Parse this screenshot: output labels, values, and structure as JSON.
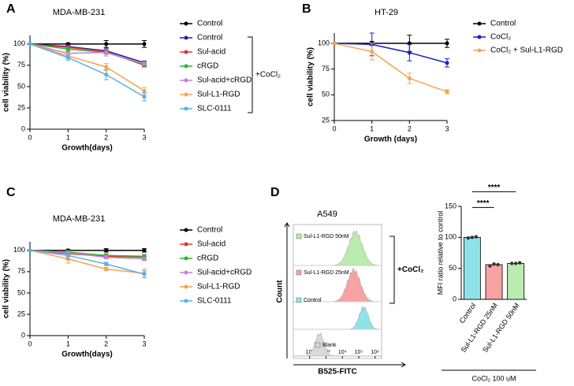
{
  "chart_data": [
    {
      "type": "line",
      "panel": "A",
      "title": "MDA-MB-231",
      "xlabel": "Growth(days)",
      "ylabel": "cell viability (%)",
      "x": [
        0,
        1,
        2,
        3
      ],
      "xlim": [
        0,
        3
      ],
      "xticks": [
        0,
        1,
        2,
        3
      ],
      "ylim": [
        0,
        110
      ],
      "yticks": [
        0,
        25,
        50,
        75,
        100
      ],
      "annotation": "+CoCl₂",
      "series": [
        {
          "name": "Control",
          "color": "#000000",
          "values": [
            100,
            100,
            100,
            100
          ],
          "errors": [
            0,
            1,
            4,
            4
          ]
        },
        {
          "name": "Control",
          "color": "#1f1fbf",
          "values": [
            100,
            97,
            92,
            78
          ],
          "errors": [
            0,
            2,
            3,
            2
          ]
        },
        {
          "name": "Sul-acid",
          "color": "#e8302a",
          "values": [
            100,
            96,
            91,
            75
          ],
          "errors": [
            0,
            2,
            2,
            2
          ]
        },
        {
          "name": "cRGD",
          "color": "#2db52d",
          "values": [
            100,
            94,
            90,
            76
          ],
          "errors": [
            0,
            2,
            2,
            2
          ]
        },
        {
          "name": "Sul-acid+cRGD",
          "color": "#c77fd6",
          "values": [
            100,
            89,
            90,
            77
          ],
          "errors": [
            0,
            2,
            4,
            2
          ]
        },
        {
          "name": "Sul-L1-RGD",
          "color": "#f5a54a",
          "values": [
            100,
            86,
            73,
            45
          ],
          "errors": [
            0,
            3,
            4,
            4
          ]
        },
        {
          "name": "SLC-0111",
          "color": "#5aaee8",
          "values": [
            100,
            84,
            64,
            38
          ],
          "errors": [
            0,
            3,
            6,
            5
          ]
        }
      ]
    },
    {
      "type": "line",
      "panel": "B",
      "title": "HT-29",
      "xlabel": "Growth (days)",
      "ylabel": "cell viability (%)",
      "x": [
        0,
        1,
        2,
        3
      ],
      "xlim": [
        0,
        3
      ],
      "xticks": [
        0,
        1,
        2,
        3
      ],
      "ylim": [
        25,
        110
      ],
      "yticks": [
        25,
        50,
        75,
        100
      ],
      "series": [
        {
          "name": "Control",
          "color": "#000000",
          "values": [
            100,
            100,
            100,
            100
          ],
          "errors": [
            0,
            2,
            8,
            4
          ]
        },
        {
          "name": "CoCl₂",
          "color": "#1f1fbf",
          "values": [
            100,
            99,
            91,
            81
          ],
          "errors": [
            0,
            11,
            8,
            4
          ]
        },
        {
          "name": "CoCl₂ + Sul-L1-RGD",
          "color": "#f5a54a",
          "values": [
            100,
            92,
            66,
            53
          ],
          "errors": [
            0,
            8,
            5,
            2
          ]
        }
      ]
    },
    {
      "type": "line",
      "panel": "C",
      "title": "MDA-MB-231",
      "xlabel": "Growth(days)",
      "ylabel": "cell viability (%)",
      "x": [
        0,
        1,
        2,
        3
      ],
      "xlim": [
        0,
        3
      ],
      "xticks": [
        0,
        1,
        2,
        3
      ],
      "ylim": [
        0,
        110
      ],
      "yticks": [
        0,
        25,
        50,
        75,
        100
      ],
      "series": [
        {
          "name": "Control",
          "color": "#000000",
          "values": [
            100,
            100,
            100,
            100
          ],
          "errors": [
            0,
            1,
            2,
            2
          ]
        },
        {
          "name": "Sul-acid",
          "color": "#e8302a",
          "values": [
            100,
            96,
            93,
            92
          ],
          "errors": [
            0,
            3,
            2,
            3
          ]
        },
        {
          "name": "cRGD",
          "color": "#2db52d",
          "values": [
            100,
            98,
            94,
            93
          ],
          "errors": [
            0,
            2,
            2,
            2
          ]
        },
        {
          "name": "Sul-acid+cRGD",
          "color": "#c77fd6",
          "values": [
            100,
            97,
            92,
            90
          ],
          "errors": [
            0,
            2,
            2,
            2
          ]
        },
        {
          "name": "Sul-L1-RGD",
          "color": "#f5a54a",
          "values": [
            100,
            90,
            78,
            73
          ],
          "errors": [
            0,
            5,
            2,
            5
          ]
        },
        {
          "name": "SLC-0111",
          "color": "#5aaee8",
          "values": [
            100,
            94,
            84,
            72
          ],
          "errors": [
            0,
            5,
            2,
            4
          ]
        }
      ]
    },
    {
      "type": "flow",
      "panel": "D",
      "title": "A549",
      "xlabel": "B525-FITC",
      "ylabel": "Count",
      "log": true,
      "xlim": [
        10,
        2500000
      ],
      "xticks": [
        {
          "value": 100,
          "label": "10²"
        },
        {
          "value": 1000,
          "label": "10³"
        },
        {
          "value": 10000,
          "label": "10⁴"
        },
        {
          "value": 100000,
          "label": "10⁵"
        },
        {
          "value": 1000000,
          "label": "10⁶"
        }
      ],
      "annotation": "+CoCl₂",
      "series": [
        {
          "name": "Sul-L1-RGD 50nM",
          "color": "#b9ecae",
          "peak": 63000
        },
        {
          "name": "Sul-L1-RGD 25nM",
          "color": "#f5a3a3",
          "peak": 50000
        },
        {
          "name": "Control",
          "color": "#8fe3e8",
          "peak": 200000
        },
        {
          "name": "Blank",
          "color": "#d9d9d9",
          "peak": 400
        }
      ]
    },
    {
      "type": "bar",
      "ylabel": "MFI ratio relative to control",
      "footer": "CoCl₂ 100 uM",
      "categories": [
        "Control",
        "Sul-L1-RGD 25nM",
        "Sul-L1-RGD 50nM"
      ],
      "values": [
        100,
        56,
        58
      ],
      "colors": [
        "#8fe3e8",
        "#f5a3a3",
        "#b9ecae"
      ],
      "points": [
        [
          99,
          100,
          101
        ],
        [
          54,
          57,
          56
        ],
        [
          58,
          58,
          59
        ]
      ],
      "annotations": [
        "****",
        "****"
      ],
      "ylim": [
        0,
        150
      ],
      "yticks": [
        0,
        50,
        100,
        150
      ]
    }
  ]
}
